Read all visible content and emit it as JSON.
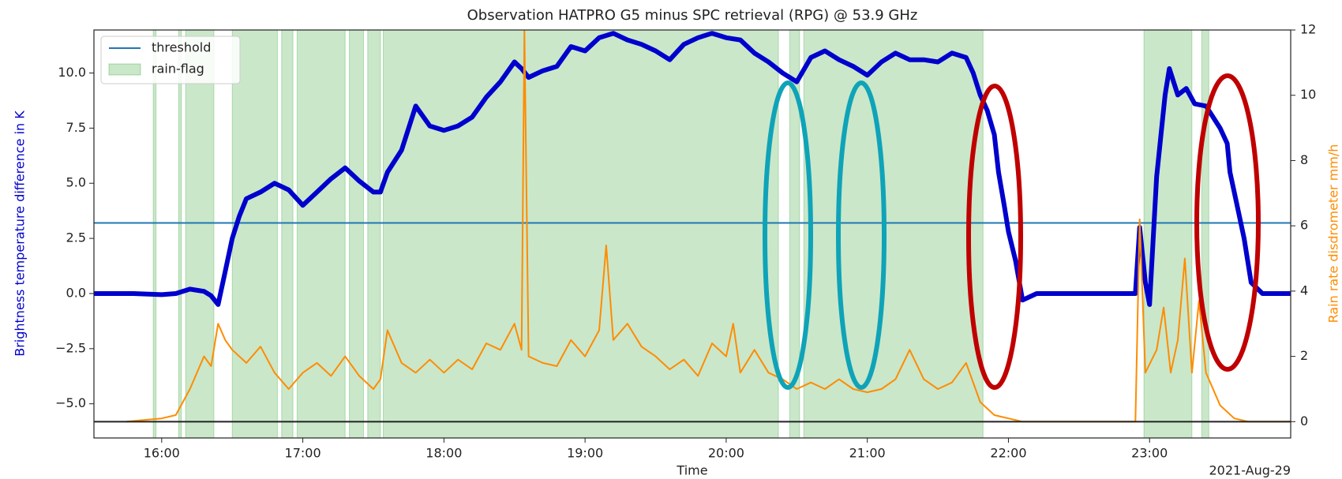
{
  "chart_data": {
    "type": "line",
    "title": "Observation HATPRO G5 minus SPC retrieval (RPG) @ 53.9 GHz",
    "xlabel": "Time",
    "ylabel": "Brightness temperature difference in K",
    "y2label": "Rain rate disdrometer mm/h",
    "offset_label": "2021-Aug-29",
    "xlim": [
      15.52,
      24.0
    ],
    "xticks": [
      {
        "value": 16,
        "label": "16:00"
      },
      {
        "value": 17,
        "label": "17:00"
      },
      {
        "value": 18,
        "label": "18:00"
      },
      {
        "value": 19,
        "label": "19:00"
      },
      {
        "value": 20,
        "label": "20:00"
      },
      {
        "value": 21,
        "label": "21:00"
      },
      {
        "value": 22,
        "label": "22:00"
      },
      {
        "value": 23,
        "label": "23:00"
      }
    ],
    "ylim": [
      -6.55,
      11.95
    ],
    "yticks": [
      {
        "value": -5,
        "label": "−5.0"
      },
      {
        "value": -2.5,
        "label": "−2.5"
      },
      {
        "value": 0,
        "label": "0.0"
      },
      {
        "value": 2.5,
        "label": "2.5"
      },
      {
        "value": 5,
        "label": "5.0"
      },
      {
        "value": 7.5,
        "label": "7.5"
      },
      {
        "value": 10,
        "label": "10.0"
      }
    ],
    "y2lim": [
      -0.5,
      12
    ],
    "y2ticks": [
      0,
      2,
      4,
      6,
      8,
      10,
      12
    ],
    "legend": "upper left",
    "threshold": {
      "name": "threshold",
      "value": 3.2,
      "color": "#1f77b4"
    },
    "baseline": {
      "value": 0,
      "axis": "y2",
      "color": "#222222"
    },
    "rain_flag": {
      "name": "rain-flag",
      "color": "#2ca02c",
      "intervals": [
        [
          15.94,
          15.96
        ],
        [
          16.12,
          16.14
        ],
        [
          16.17,
          16.37
        ],
        [
          16.5,
          16.82
        ],
        [
          16.85,
          16.93
        ],
        [
          16.96,
          17.3
        ],
        [
          17.33,
          17.43
        ],
        [
          17.46,
          17.55
        ],
        [
          17.57,
          20.37
        ],
        [
          20.45,
          20.52
        ],
        [
          20.55,
          21.82
        ],
        [
          22.96,
          23.3
        ],
        [
          23.37,
          23.42
        ]
      ]
    },
    "series": [
      {
        "color": "#0000cd",
        "x": [
          15.52,
          15.8,
          16.0,
          16.1,
          16.2,
          16.3,
          16.35,
          16.4,
          16.45,
          16.5,
          16.55,
          16.6,
          16.7,
          16.8,
          16.9,
          17.0,
          17.1,
          17.2,
          17.3,
          17.4,
          17.5,
          17.55,
          17.6,
          17.7,
          17.8,
          17.9,
          18.0,
          18.1,
          18.2,
          18.3,
          18.4,
          18.5,
          18.55,
          18.6,
          18.7,
          18.8,
          18.9,
          19.0,
          19.1,
          19.2,
          19.3,
          19.4,
          19.5,
          19.6,
          19.7,
          19.8,
          19.9,
          20.0,
          20.1,
          20.2,
          20.3,
          20.4,
          20.5,
          20.6,
          20.7,
          20.8,
          20.9,
          21.0,
          21.1,
          21.2,
          21.3,
          21.4,
          21.5,
          21.6,
          21.7,
          21.75,
          21.8,
          21.85,
          21.9,
          21.93,
          21.97,
          22.0,
          22.05,
          22.1,
          22.2,
          22.5,
          22.9,
          22.93,
          22.97,
          23.0,
          23.05,
          23.11,
          23.14,
          23.2,
          23.26,
          23.32,
          23.4,
          23.5,
          23.55,
          23.57,
          23.62,
          23.67,
          23.72,
          23.8,
          24.0
        ],
        "values": [
          0.0,
          0.0,
          -0.05,
          0.0,
          0.2,
          0.1,
          -0.1,
          -0.5,
          1.0,
          2.5,
          3.5,
          4.3,
          4.6,
          5.0,
          4.7,
          4.0,
          4.6,
          5.2,
          5.7,
          5.1,
          4.6,
          4.6,
          5.5,
          6.5,
          8.5,
          7.6,
          7.4,
          7.6,
          8.0,
          8.9,
          9.6,
          10.5,
          10.2,
          9.8,
          10.1,
          10.3,
          11.2,
          11.0,
          11.6,
          11.8,
          11.5,
          11.3,
          11.0,
          10.6,
          11.3,
          11.6,
          11.8,
          11.6,
          11.5,
          10.9,
          10.5,
          10.0,
          9.6,
          10.7,
          11.0,
          10.6,
          10.3,
          9.9,
          10.5,
          10.9,
          10.6,
          10.6,
          10.5,
          10.9,
          10.7,
          10.0,
          9.0,
          8.3,
          7.2,
          5.5,
          4.0,
          2.8,
          1.5,
          -0.3,
          0.0,
          0.0,
          0.0,
          3.0,
          0.5,
          -0.5,
          5.3,
          9.0,
          10.2,
          9.0,
          9.3,
          8.6,
          8.5,
          7.5,
          6.8,
          5.5,
          4.0,
          2.5,
          0.5,
          0.0,
          0.0
        ]
      },
      {
        "color": "#ff8c00",
        "axis": "y2",
        "x": [
          15.75,
          16.0,
          16.1,
          16.2,
          16.3,
          16.35,
          16.4,
          16.45,
          16.5,
          16.6,
          16.7,
          16.8,
          16.9,
          17.0,
          17.1,
          17.2,
          17.3,
          17.4,
          17.5,
          17.55,
          17.6,
          17.7,
          17.8,
          17.9,
          18.0,
          18.1,
          18.2,
          18.3,
          18.4,
          18.5,
          18.55,
          18.57,
          18.6,
          18.7,
          18.8,
          18.9,
          19.0,
          19.1,
          19.15,
          19.2,
          19.3,
          19.4,
          19.5,
          19.6,
          19.7,
          19.8,
          19.9,
          20.0,
          20.05,
          20.1,
          20.2,
          20.3,
          20.4,
          20.5,
          20.6,
          20.7,
          20.8,
          20.9,
          21.0,
          21.1,
          21.2,
          21.3,
          21.4,
          21.5,
          21.6,
          21.7,
          21.8,
          21.9,
          22.0,
          22.1,
          22.9,
          22.93,
          22.97,
          23.05,
          23.1,
          23.15,
          23.2,
          23.25,
          23.3,
          23.35,
          23.4,
          23.5,
          23.6,
          23.7,
          24.0
        ],
        "values": [
          0,
          0.1,
          0.2,
          1.0,
          2.0,
          1.7,
          3.0,
          2.5,
          2.2,
          1.8,
          2.3,
          1.5,
          1.0,
          1.5,
          1.8,
          1.4,
          2.0,
          1.4,
          1.0,
          1.3,
          2.8,
          1.8,
          1.5,
          1.9,
          1.5,
          1.9,
          1.6,
          2.4,
          2.2,
          3.0,
          2.2,
          12,
          2.0,
          1.8,
          1.7,
          2.5,
          2.0,
          2.8,
          5.4,
          2.5,
          3.0,
          2.3,
          2.0,
          1.6,
          1.9,
          1.4,
          2.4,
          2.0,
          3.0,
          1.5,
          2.2,
          1.5,
          1.3,
          1.0,
          1.2,
          1.0,
          1.3,
          1.0,
          0.9,
          1.0,
          1.3,
          2.2,
          1.3,
          1.0,
          1.2,
          1.8,
          0.6,
          0.2,
          0.1,
          0,
          0,
          6.2,
          1.5,
          2.2,
          3.5,
          1.5,
          2.5,
          5.0,
          1.5,
          3.7,
          1.5,
          0.5,
          0.1,
          0,
          0
        ]
      }
    ]
  }
}
